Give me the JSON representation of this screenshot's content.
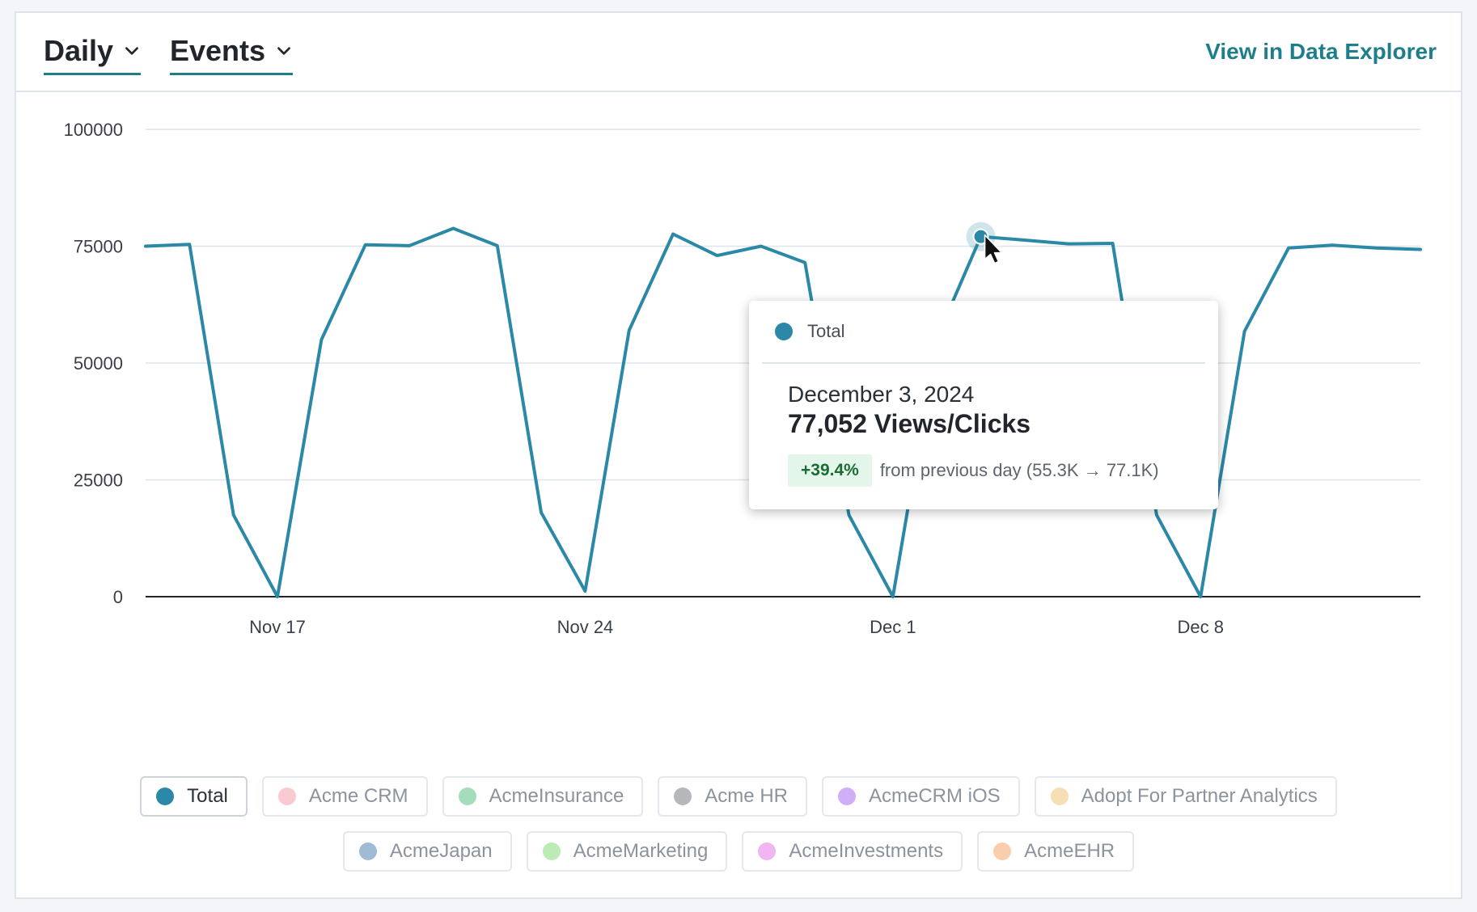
{
  "header": {
    "granularity_label": "Daily",
    "metric_label": "Events",
    "explore_link": "View in Data Explorer"
  },
  "colors": {
    "accent": "#1e7f8a",
    "line": "#2b88a6",
    "grid": "#dfe3ea",
    "axis": "#22262c"
  },
  "chart_data": {
    "type": "line",
    "ylim": [
      0,
      100000
    ],
    "yticks": [
      "0",
      "25000",
      "50000",
      "75000",
      "100000"
    ],
    "ytick_values": [
      0,
      25000,
      50000,
      75000,
      100000
    ],
    "x_start": "2024-11-14",
    "x_end": "2024-12-13",
    "xticks": [
      "Nov 17",
      "Nov 24",
      "Dec 1",
      "Dec 8"
    ],
    "xtick_dates": [
      "2024-11-17",
      "2024-11-24",
      "2024-12-01",
      "2024-12-08"
    ],
    "series": [
      {
        "name": "Total",
        "color": "#2b88a6",
        "points": [
          [
            "2024-11-14",
            75000
          ],
          [
            "2024-11-15",
            75400
          ],
          [
            "2024-11-16",
            17500
          ],
          [
            "2024-11-17",
            0
          ],
          [
            "2024-11-18",
            55000
          ],
          [
            "2024-11-19",
            75300
          ],
          [
            "2024-11-20",
            75100
          ],
          [
            "2024-11-21",
            78800
          ],
          [
            "2024-11-22",
            75100
          ],
          [
            "2024-11-23",
            18000
          ],
          [
            "2024-11-24",
            1200
          ],
          [
            "2024-11-25",
            57000
          ],
          [
            "2024-11-26",
            77600
          ],
          [
            "2024-11-27",
            73000
          ],
          [
            "2024-11-28",
            75000
          ],
          [
            "2024-11-29",
            71500
          ],
          [
            "2024-11-30",
            17500
          ],
          [
            "2024-12-01",
            0
          ],
          [
            "2024-12-02",
            55300
          ],
          [
            "2024-12-03",
            77052
          ],
          [
            "2024-12-04",
            76300
          ],
          [
            "2024-12-05",
            75500
          ],
          [
            "2024-12-06",
            75600
          ],
          [
            "2024-12-07",
            17500
          ],
          [
            "2024-12-08",
            0
          ],
          [
            "2024-12-09",
            56800
          ],
          [
            "2024-12-10",
            74600
          ],
          [
            "2024-12-11",
            75200
          ],
          [
            "2024-12-12",
            74600
          ],
          [
            "2024-12-13",
            74300
          ]
        ]
      }
    ]
  },
  "tooltip": {
    "series_name": "Total",
    "date": "December 3, 2024",
    "value": "77,052 Views/Clicks",
    "change": "+39.4%",
    "change_text": "from previous day (55.3K → 77.1K)"
  },
  "legend": {
    "row1": [
      {
        "label": "Total",
        "color": "#2b88a6",
        "active": true
      },
      {
        "label": "Acme CRM",
        "color": "#f48a9e",
        "active": false
      },
      {
        "label": "AcmeInsurance",
        "color": "#35b26a",
        "active": false
      },
      {
        "label": "Acme HR",
        "color": "#5b5f66",
        "active": false
      },
      {
        "label": "AcmeCRM iOS",
        "color": "#9a4cf0",
        "active": false
      },
      {
        "label": "Adopt For Partner Analytics",
        "color": "#eab55a",
        "active": false
      }
    ],
    "row2": [
      {
        "label": "AcmeJapan",
        "color": "#2c6aa0",
        "active": false
      },
      {
        "label": "AcmeMarketing",
        "color": "#6bd35a",
        "active": false
      },
      {
        "label": "AcmeInvestments",
        "color": "#e05ce0",
        "active": false
      },
      {
        "label": "AcmeEHR",
        "color": "#f5904a",
        "active": false
      }
    ]
  }
}
